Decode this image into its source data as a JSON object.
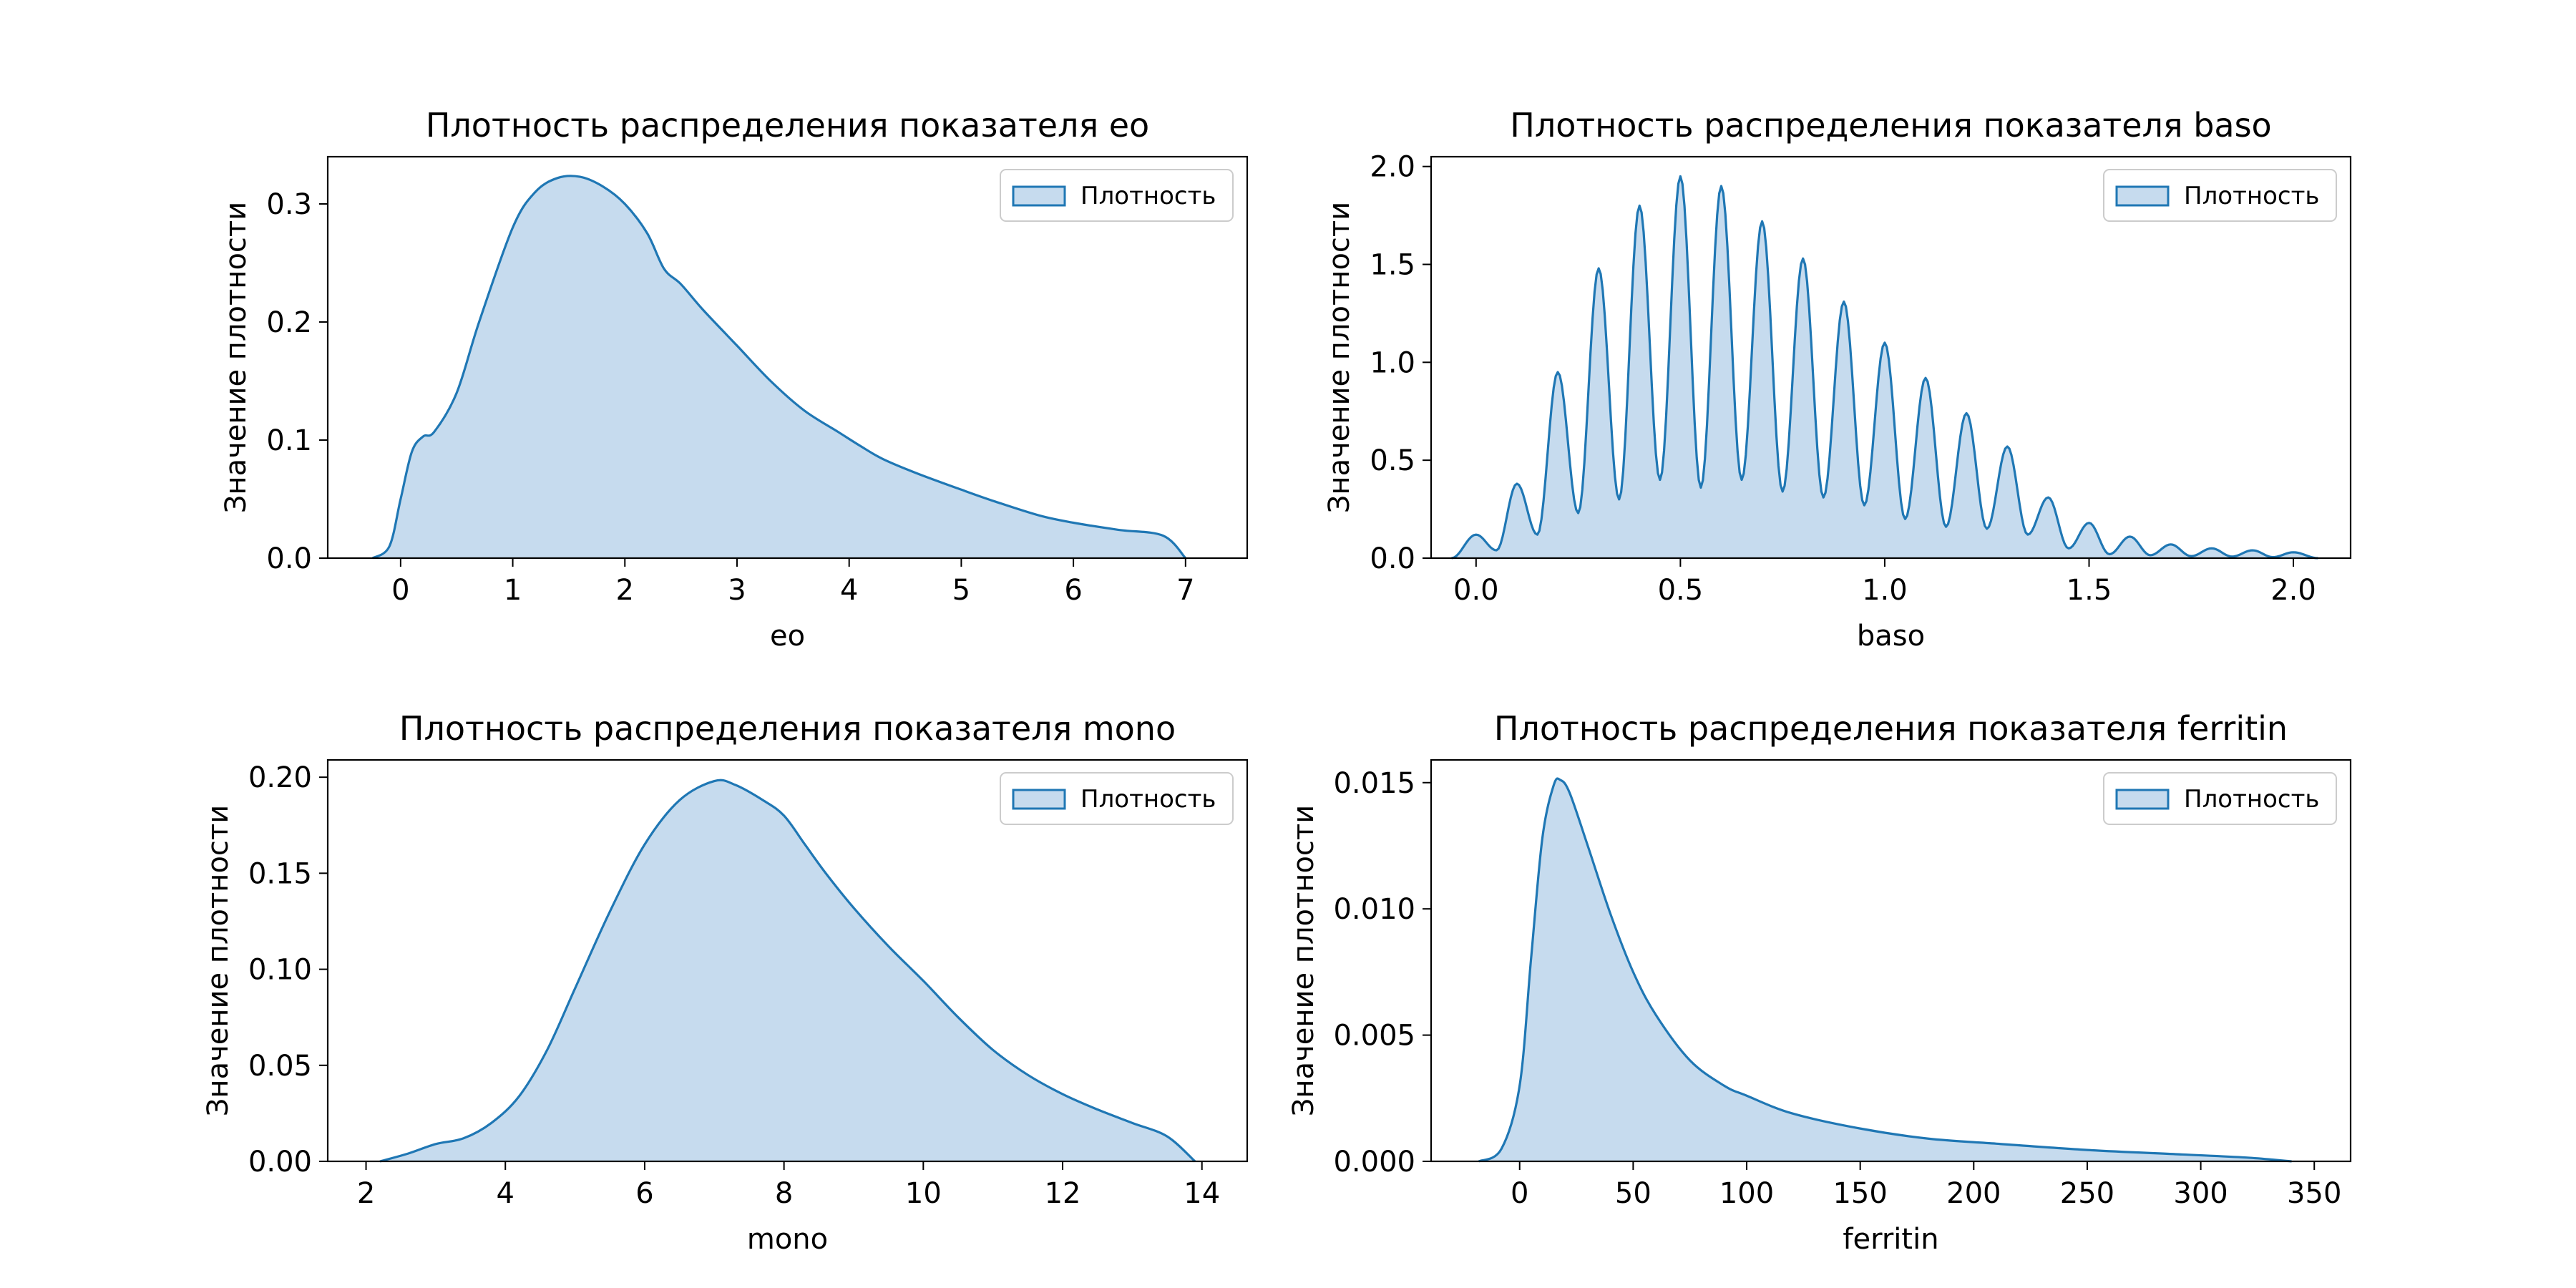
{
  "colors": {
    "line": "#1f77b4",
    "fill": "#c6dbee",
    "frame": "#000000",
    "legend_edge": "#cccccc"
  },
  "chart_data": [
    {
      "type": "area",
      "title": "Плотность распределения показателя eo",
      "xlabel": "eo",
      "ylabel": "Значение плотности",
      "xlim": [
        -0.65,
        7.55
      ],
      "ylim": [
        0,
        0.34
      ],
      "xticks": [
        0,
        1,
        2,
        3,
        4,
        5,
        6,
        7
      ],
      "yticks": [
        0.0,
        0.1,
        0.2,
        0.3
      ],
      "xtick_labels": [
        "0",
        "1",
        "2",
        "3",
        "4",
        "5",
        "6",
        "7"
      ],
      "ytick_labels": [
        "0.0",
        "0.1",
        "0.2",
        "0.3"
      ],
      "grid": false,
      "legend": {
        "position": "top-right",
        "entries": [
          "Плотность"
        ]
      },
      "series": [
        {
          "name": "Плотность",
          "x": [
            -0.25,
            -0.1,
            0.0,
            0.1,
            0.2,
            0.3,
            0.5,
            0.7,
            1.0,
            1.2,
            1.4,
            1.6,
            1.8,
            2.0,
            2.2,
            2.35,
            2.5,
            2.7,
            3.0,
            3.3,
            3.6,
            3.9,
            4.1,
            4.3,
            4.6,
            5.0,
            5.3,
            5.7,
            6.0,
            6.4,
            6.8,
            7.0
          ],
          "y": [
            0.0,
            0.01,
            0.05,
            0.09,
            0.103,
            0.107,
            0.14,
            0.2,
            0.28,
            0.31,
            0.322,
            0.323,
            0.315,
            0.3,
            0.275,
            0.245,
            0.232,
            0.21,
            0.18,
            0.15,
            0.125,
            0.107,
            0.095,
            0.084,
            0.072,
            0.058,
            0.048,
            0.036,
            0.03,
            0.024,
            0.019,
            0.0
          ]
        }
      ]
    },
    {
      "type": "area",
      "title": "Плотность распределения показателя baso",
      "xlabel": "baso",
      "ylabel": "Значение плотности",
      "xlim": [
        -0.11,
        2.14
      ],
      "ylim": [
        0,
        2.05
      ],
      "xticks": [
        0.0,
        0.5,
        1.0,
        1.5,
        2.0
      ],
      "yticks": [
        0.0,
        0.5,
        1.0,
        1.5,
        2.0
      ],
      "xtick_labels": [
        "0.0",
        "0.5",
        "1.0",
        "1.5",
        "2.0"
      ],
      "ytick_labels": [
        "0.0",
        "0.5",
        "1.0",
        "1.5",
        "2.0"
      ],
      "grid": false,
      "legend": {
        "position": "top-right",
        "entries": [
          "Плотность"
        ]
      },
      "series": [
        {
          "name": "Плотность",
          "peaks_x": [
            0.0,
            0.1,
            0.2,
            0.3,
            0.4,
            0.5,
            0.6,
            0.7,
            0.8,
            0.9,
            1.0,
            1.1,
            1.2,
            1.3,
            1.4,
            1.5,
            1.6,
            1.7,
            1.8,
            1.9,
            2.0
          ],
          "peaks_y": [
            0.12,
            0.38,
            0.95,
            1.48,
            1.8,
            1.95,
            1.9,
            1.72,
            1.53,
            1.31,
            1.1,
            0.92,
            0.74,
            0.57,
            0.31,
            0.18,
            0.11,
            0.07,
            0.05,
            0.04,
            0.03
          ],
          "troughs_y": [
            0.04,
            0.12,
            0.23,
            0.3,
            0.4,
            0.36,
            0.4,
            0.34,
            0.31,
            0.27,
            0.2,
            0.16,
            0.15,
            0.12,
            0.05,
            0.02,
            0.015,
            0.01,
            0.008,
            0.005
          ]
        }
      ]
    },
    {
      "type": "area",
      "title": "Плотность распределения показателя mono",
      "xlabel": "mono",
      "ylabel": "Значение плотности",
      "xlim": [
        1.45,
        14.65
      ],
      "ylim": [
        0,
        0.209
      ],
      "xticks": [
        2,
        4,
        6,
        8,
        10,
        12,
        14
      ],
      "yticks": [
        0.0,
        0.05,
        0.1,
        0.15,
        0.2
      ],
      "xtick_labels": [
        "2",
        "4",
        "6",
        "8",
        "10",
        "12",
        "14"
      ],
      "ytick_labels": [
        "0.00",
        "0.05",
        "0.10",
        "0.15",
        "0.20"
      ],
      "grid": false,
      "legend": {
        "position": "top-right",
        "entries": [
          "Плотность"
        ]
      },
      "series": [
        {
          "name": "Плотность",
          "x": [
            2.2,
            2.6,
            3.0,
            3.4,
            3.8,
            4.2,
            4.6,
            5.0,
            5.5,
            6.0,
            6.5,
            7.0,
            7.3,
            7.7,
            8.0,
            8.3,
            8.6,
            9.0,
            9.5,
            10.0,
            10.5,
            11.0,
            11.5,
            12.0,
            12.5,
            13.0,
            13.5,
            13.9
          ],
          "y": [
            0.0,
            0.004,
            0.009,
            0.012,
            0.02,
            0.034,
            0.058,
            0.09,
            0.13,
            0.165,
            0.188,
            0.198,
            0.196,
            0.188,
            0.18,
            0.165,
            0.15,
            0.132,
            0.112,
            0.094,
            0.075,
            0.058,
            0.045,
            0.035,
            0.027,
            0.02,
            0.013,
            0.0
          ]
        }
      ]
    },
    {
      "type": "area",
      "title": "Плотность распределения показателя ferritin",
      "xlabel": "ferritin",
      "ylabel": "Значение плотности",
      "xlim": [
        -39,
        366
      ],
      "ylim": [
        0,
        0.0159
      ],
      "xticks": [
        0,
        50,
        100,
        150,
        200,
        250,
        300,
        350
      ],
      "yticks": [
        0.0,
        0.005,
        0.01,
        0.015
      ],
      "xtick_labels": [
        "0",
        "50",
        "100",
        "150",
        "200",
        "250",
        "300",
        "350"
      ],
      "ytick_labels": [
        "0.000",
        "0.005",
        "0.010",
        "0.015"
      ],
      "grid": false,
      "legend": {
        "position": "top-right",
        "entries": [
          "Плотность"
        ]
      },
      "series": [
        {
          "name": "Плотность",
          "x": [
            -18,
            -8,
            0,
            5,
            10,
            15,
            18,
            22,
            30,
            40,
            50,
            60,
            75,
            90,
            100,
            120,
            150,
            180,
            210,
            250,
            290,
            320,
            340
          ],
          "y": [
            0.0,
            0.0005,
            0.003,
            0.008,
            0.0128,
            0.0149,
            0.0151,
            0.0146,
            0.0125,
            0.0098,
            0.0075,
            0.0058,
            0.004,
            0.003,
            0.0026,
            0.0019,
            0.0013,
            0.0009,
            0.0007,
            0.00045,
            0.00028,
            0.00015,
            0.0
          ]
        }
      ]
    }
  ]
}
